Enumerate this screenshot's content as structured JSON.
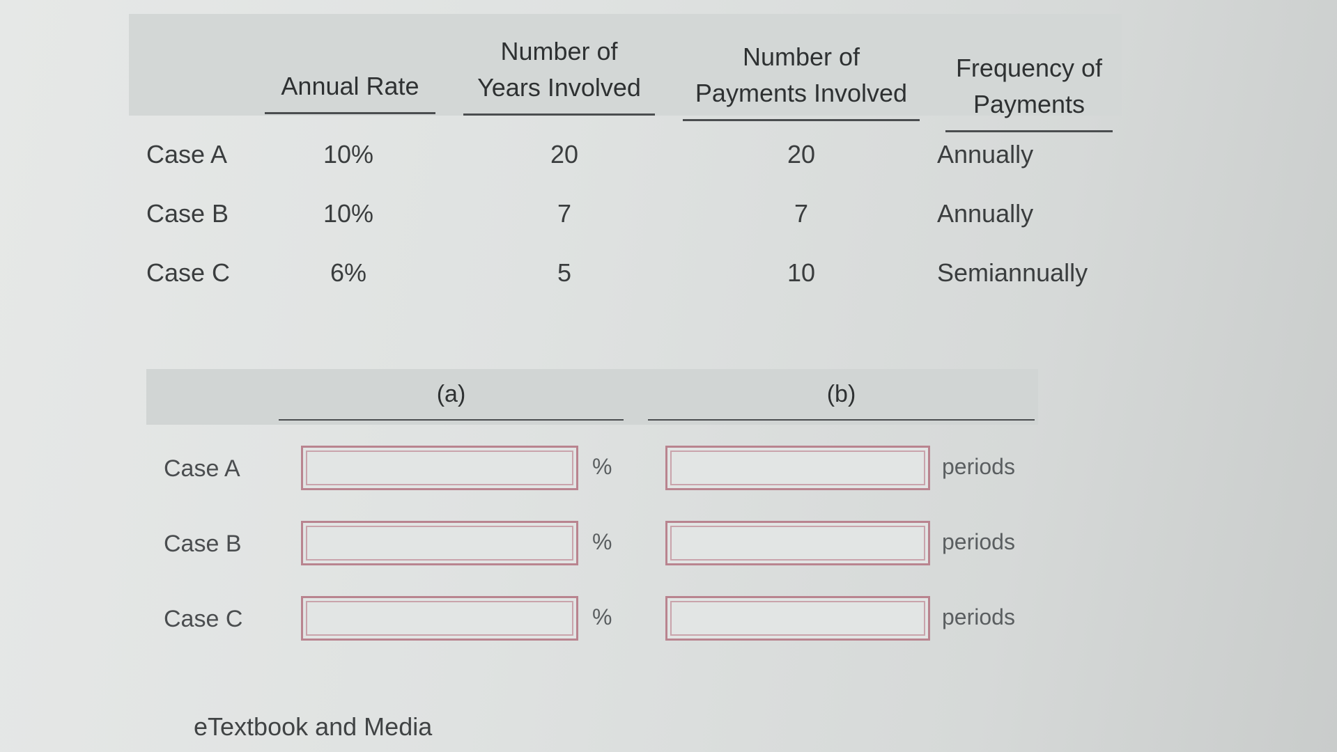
{
  "given": {
    "headers": {
      "annual_rate": "Annual Rate",
      "years": [
        "Number of",
        "Years Involved"
      ],
      "payments": [
        "Number of",
        "Payments Involved"
      ],
      "frequency": [
        "Frequency of",
        "Payments"
      ]
    },
    "rows": [
      {
        "label": "Case A",
        "rate": "10%",
        "years": "20",
        "payments": "20",
        "frequency": "Annually"
      },
      {
        "label": "Case B",
        "rate": "10%",
        "years": "7",
        "payments": "7",
        "frequency": "Annually"
      },
      {
        "label": "Case C",
        "rate": "6%",
        "years": "5",
        "payments": "10",
        "frequency": "Semiannually"
      }
    ]
  },
  "answers": {
    "col_a": "(a)",
    "col_b": "(b)",
    "rate_unit": "%",
    "periods_unit": "periods",
    "rows": [
      {
        "label": "Case A",
        "rate_value": "",
        "periods_value": ""
      },
      {
        "label": "Case B",
        "rate_value": "",
        "periods_value": ""
      },
      {
        "label": "Case C",
        "rate_value": "",
        "periods_value": ""
      }
    ]
  },
  "footer": {
    "link": "eTextbook and Media"
  }
}
